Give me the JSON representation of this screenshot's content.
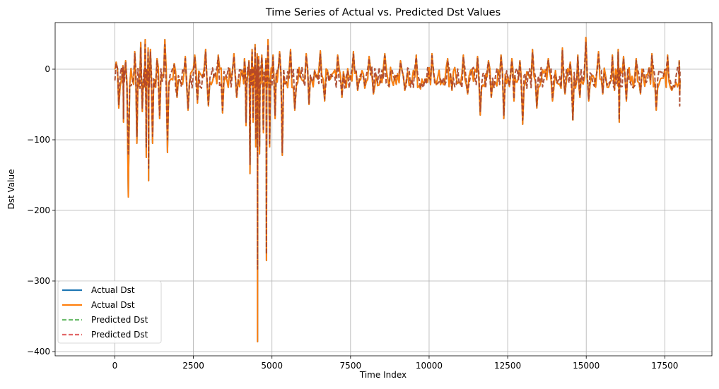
{
  "chart_data": {
    "type": "line",
    "title": "Time Series of Actual vs. Predicted Dst Values",
    "xlabel": "Time Index",
    "ylabel": "Dst Value",
    "xlim": [
      -1900,
      19000
    ],
    "ylim": [
      -406,
      66
    ],
    "xticks": [
      0,
      2500,
      5000,
      7500,
      10000,
      12500,
      15000,
      17500
    ],
    "xtick_labels": [
      "0",
      "2500",
      "5000",
      "7500",
      "10000",
      "12500",
      "15000",
      "17500"
    ],
    "yticks": [
      -400,
      -300,
      -200,
      -100,
      0
    ],
    "ytick_labels": [
      "−400",
      "−300",
      "−200",
      "−100",
      "0"
    ],
    "grid": true,
    "legend_position": "lower-left",
    "series": [
      {
        "name": "Actual Dst",
        "color": "#1f77b4",
        "style": "solid"
      },
      {
        "name": "Actual Dst",
        "color": "#ff7f0e",
        "style": "solid"
      },
      {
        "name": "Predicted Dst",
        "color": "#2ca02c",
        "style": "dashed"
      },
      {
        "name": "Predicted Dst",
        "color": "#d62728",
        "style": "dashed"
      }
    ],
    "x": [
      0,
      250,
      300,
      600,
      800,
      950,
      1050,
      1100,
      1300,
      1550,
      1800,
      2200,
      2500,
      2800,
      3200,
      3700,
      4100,
      4250,
      4350,
      4450,
      4520,
      4560,
      4650,
      4800,
      4850,
      5000,
      5200,
      5500,
      6000,
      6400,
      7000,
      7500,
      8000,
      8500,
      9000,
      9500,
      10000,
      10500,
      11000,
      11500,
      11800,
      12200,
      12600,
      12800,
      13200,
      13700,
      14200,
      14450,
      14700,
      14900,
      15300,
      15800,
      16000,
      16100,
      16500,
      17000,
      17500,
      17950
    ],
    "actual_max": [
      10,
      5,
      12,
      25,
      38,
      42,
      30,
      28,
      15,
      42,
      8,
      18,
      20,
      28,
      20,
      22,
      15,
      12,
      28,
      35,
      22,
      18,
      20,
      15,
      42,
      20,
      25,
      28,
      22,
      26,
      20,
      25,
      18,
      22,
      12,
      20,
      22,
      15,
      20,
      18,
      12,
      20,
      15,
      12,
      28,
      15,
      30,
      10,
      20,
      45,
      25,
      20,
      28,
      18,
      15,
      22,
      20,
      12
    ],
    "actual_min": [
      -55,
      -75,
      -181,
      -105,
      -60,
      -125,
      -158,
      -105,
      -70,
      -118,
      -40,
      -58,
      -48,
      -52,
      -62,
      -40,
      -80,
      -148,
      -75,
      -110,
      -386,
      -120,
      -90,
      -271,
      -110,
      -70,
      -122,
      -58,
      -50,
      -45,
      -40,
      -30,
      -35,
      -25,
      -30,
      -28,
      -22,
      -30,
      -35,
      -65,
      -40,
      -70,
      -45,
      -78,
      -55,
      -45,
      -35,
      -72,
      -40,
      -45,
      -35,
      -30,
      -75,
      -45,
      -35,
      -58,
      -30,
      -35
    ],
    "predicted_max": [
      8,
      4,
      10,
      22,
      30,
      35,
      26,
      24,
      12,
      35,
      6,
      15,
      17,
      24,
      17,
      18,
      12,
      10,
      24,
      30,
      18,
      15,
      17,
      12,
      35,
      17,
      21,
      24,
      19,
      22,
      17,
      21,
      15,
      19,
      10,
      17,
      19,
      12,
      17,
      15,
      10,
      17,
      12,
      10,
      24,
      12,
      26,
      8,
      17,
      38,
      21,
      17,
      24,
      15,
      12,
      19,
      17,
      10
    ],
    "predicted_min": [
      -50,
      -70,
      -120,
      -95,
      -55,
      -110,
      -140,
      -95,
      -65,
      -100,
      -38,
      -55,
      -45,
      -50,
      -58,
      -38,
      -75,
      -135,
      -70,
      -100,
      -283,
      -110,
      -85,
      -262,
      -105,
      -65,
      -118,
      -55,
      -48,
      -42,
      -38,
      -28,
      -33,
      -24,
      -28,
      -26,
      -21,
      -28,
      -33,
      -60,
      -38,
      -65,
      -42,
      -72,
      -52,
      -42,
      -33,
      -72,
      -38,
      -42,
      -33,
      -28,
      -72,
      -42,
      -33,
      -55,
      -28,
      -52
    ]
  }
}
